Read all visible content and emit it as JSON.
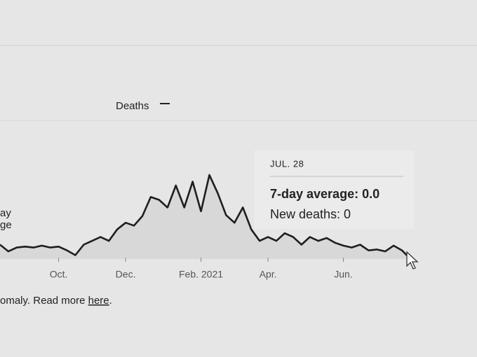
{
  "chart_data": {
    "type": "line",
    "categories": [
      null,
      null,
      null,
      null,
      null,
      null,
      null,
      "Oct.",
      null,
      null,
      null,
      null,
      null,
      null,
      null,
      "Dec.",
      null,
      null,
      null,
      null,
      null,
      null,
      null,
      null,
      "Feb. 2021",
      null,
      null,
      null,
      null,
      null,
      null,
      null,
      "Apr.",
      null,
      null,
      null,
      null,
      null,
      null,
      null,
      null,
      "Jun.",
      null,
      null,
      null,
      null,
      null,
      null,
      null,
      null
    ],
    "series": [
      {
        "name": "Deaths",
        "color": "#1e1e1e",
        "values": [
          1.5,
          0.8,
          1.2,
          1.3,
          1.2,
          1.4,
          1.2,
          1.3,
          0.9,
          0.4,
          1.5,
          1.9,
          2.3,
          1.9,
          3.1,
          3.8,
          3.5,
          4.5,
          6.5,
          6.2,
          5.4,
          7.7,
          5.4,
          8.1,
          5.0,
          8.8,
          6.9,
          4.6,
          3.8,
          5.4,
          3.1,
          1.9,
          2.3,
          1.9,
          2.7,
          2.3,
          1.5,
          2.3,
          1.9,
          2.2,
          1.7,
          1.4,
          1.2,
          1.5,
          0.9,
          1.0,
          0.8,
          1.4,
          0.9,
          0
        ]
      }
    ],
    "legend_fragments": [
      "ay",
      "ge"
    ],
    "tooltip": {
      "date": "JUL. 28",
      "average": "7-day average: 0.0",
      "new": "New deaths: 0"
    },
    "footnote": {
      "text": "omaly. Read more ",
      "link": "here",
      "end": "."
    }
  }
}
